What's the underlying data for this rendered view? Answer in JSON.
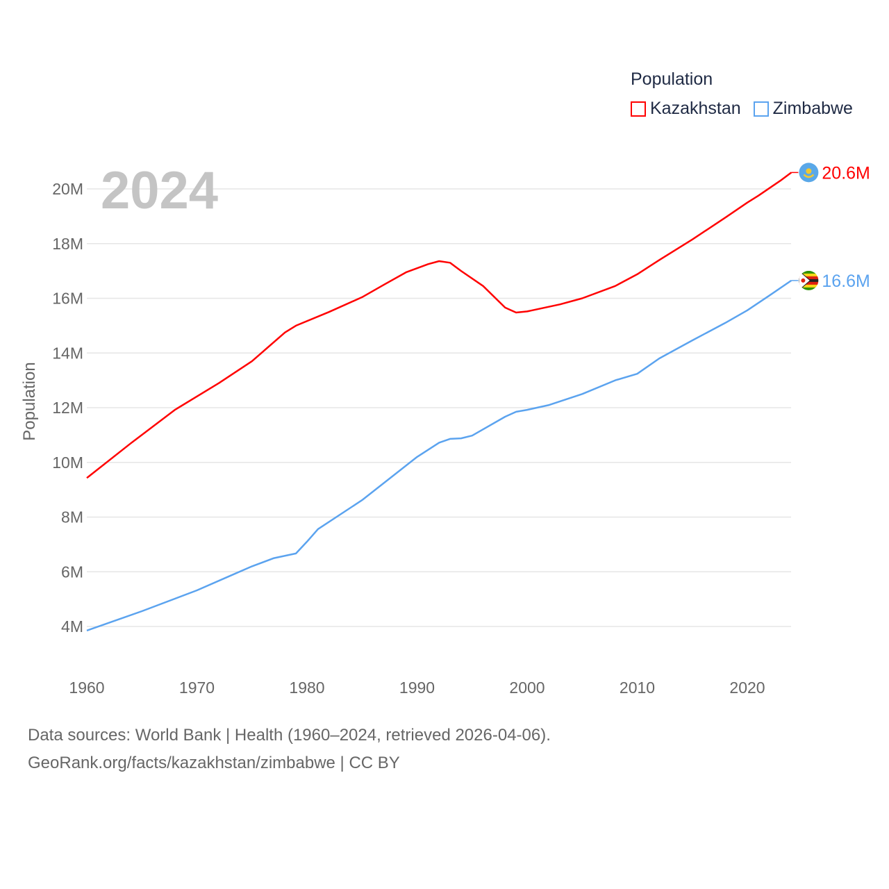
{
  "chart_data": {
    "type": "line",
    "title": "",
    "year_label": "2024",
    "ylabel": "Population",
    "xlabel": "",
    "xlim": [
      1960,
      2024
    ],
    "ylim": [
      4,
      20.6
    ],
    "x_ticks": [
      "1960",
      "1970",
      "1980",
      "1990",
      "2000",
      "2010",
      "2020"
    ],
    "y_ticks": [
      "4M",
      "6M",
      "8M",
      "10M",
      "12M",
      "14M",
      "16M",
      "18M",
      "20M"
    ],
    "y_tick_values": [
      4,
      6,
      8,
      10,
      12,
      14,
      16,
      18,
      20
    ],
    "grid": true,
    "legend": {
      "title": "Population",
      "placement": "top-right"
    },
    "series": [
      {
        "name": "Kazakhstan",
        "color": "#ff0000",
        "end_label": "20.6M",
        "flag": "kazakhstan-flag",
        "x": [
          1960,
          1964,
          1968,
          1972,
          1975,
          1976,
          1978,
          1979,
          1982,
          1985,
          1987,
          1989,
          1991,
          1992,
          1993,
          1994,
          1996,
          1998,
          1999,
          2000,
          2003,
          2005,
          2008,
          2010,
          2012,
          2015,
          2018,
          2020,
          2021,
          2023,
          2024
        ],
        "values": [
          9.43,
          10.7,
          11.92,
          12.9,
          13.7,
          14.05,
          14.75,
          15.0,
          15.5,
          16.04,
          16.5,
          16.95,
          17.25,
          17.36,
          17.3,
          17.0,
          16.45,
          15.66,
          15.48,
          15.52,
          15.78,
          16.0,
          16.45,
          16.88,
          17.4,
          18.15,
          18.95,
          19.5,
          19.75,
          20.3,
          20.6
        ]
      },
      {
        "name": "Zimbabwe",
        "color": "#5ba3ef",
        "end_label": "16.6M",
        "flag": "zimbabwe-flag",
        "x": [
          1960,
          1965,
          1970,
          1973,
          1975,
          1977,
          1979,
          1980,
          1981,
          1985,
          1990,
          1992,
          1993,
          1994,
          1995,
          1998,
          1999,
          2000,
          2002,
          2005,
          2008,
          2010,
          2012,
          2015,
          2018,
          2020,
          2022,
          2024
        ],
        "values": [
          3.85,
          4.56,
          5.32,
          5.85,
          6.2,
          6.5,
          6.67,
          7.1,
          7.56,
          8.62,
          10.2,
          10.72,
          10.86,
          10.88,
          10.98,
          11.67,
          11.85,
          11.92,
          12.1,
          12.5,
          13.0,
          13.24,
          13.8,
          14.46,
          15.1,
          15.56,
          16.1,
          16.65
        ]
      }
    ]
  },
  "footer": {
    "line1": "Data sources: World Bank | Health (1960–2024, retrieved 2026-04-06).",
    "line2": "GeoRank.org/facts/kazakhstan/zimbabwe | CC BY"
  }
}
